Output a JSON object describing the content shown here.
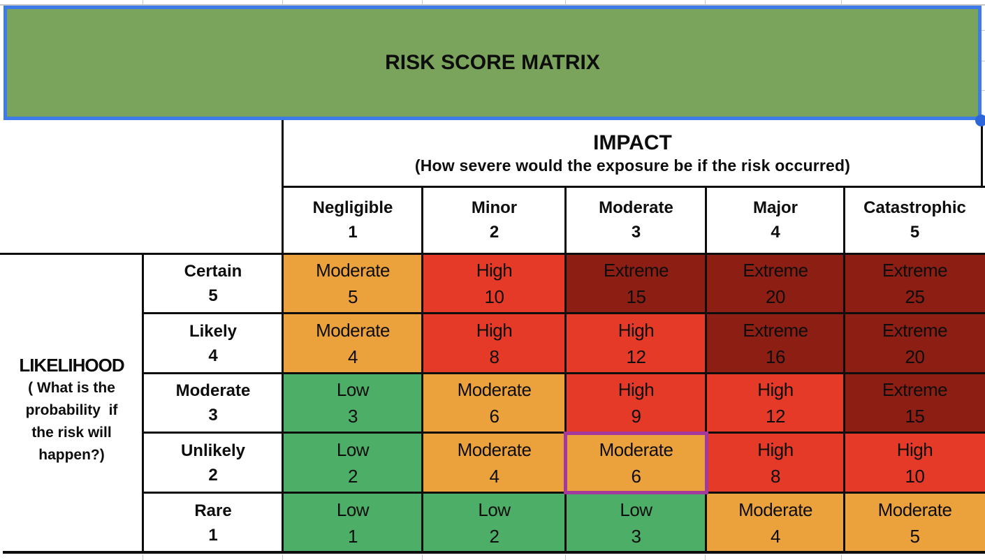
{
  "banner": {
    "title": "RISK SCORE MATRIX"
  },
  "impact_header": {
    "title": "IMPACT",
    "subtitle": "(How severe would the exposure be if the risk occurred)"
  },
  "likelihood_header": {
    "title": "LIKELIHOOD",
    "subtitle_lines": [
      "( What is the",
      "probability  if",
      "the risk will",
      "happen?)"
    ]
  },
  "impact_levels": [
    {
      "label": "Negligible",
      "value": "1"
    },
    {
      "label": "Minor",
      "value": "2"
    },
    {
      "label": "Moderate",
      "value": "3"
    },
    {
      "label": "Major",
      "value": "4"
    },
    {
      "label": "Catastrophic",
      "value": "5"
    }
  ],
  "likelihood_levels": [
    {
      "label": "Certain",
      "value": "5"
    },
    {
      "label": "Likely",
      "value": "4"
    },
    {
      "label": "Moderate",
      "value": "3"
    },
    {
      "label": "Unlikely",
      "value": "2"
    },
    {
      "label": "Rare",
      "value": "1"
    }
  ],
  "matrix": {
    "rows": [
      {
        "likelihood": "Certain",
        "cells": [
          {
            "rating": "Moderate",
            "score": "5",
            "level": "moderate"
          },
          {
            "rating": "High",
            "score": "10",
            "level": "high"
          },
          {
            "rating": "Extreme",
            "score": "15",
            "level": "extreme"
          },
          {
            "rating": "Extreme",
            "score": "20",
            "level": "extreme"
          },
          {
            "rating": "Extreme",
            "score": "25",
            "level": "extreme"
          }
        ]
      },
      {
        "likelihood": "Likely",
        "cells": [
          {
            "rating": "Moderate",
            "score": "4",
            "level": "moderate"
          },
          {
            "rating": "High",
            "score": "8",
            "level": "high"
          },
          {
            "rating": "High",
            "score": "12",
            "level": "high"
          },
          {
            "rating": "Extreme",
            "score": "16",
            "level": "extreme"
          },
          {
            "rating": "Extreme",
            "score": "20",
            "level": "extreme"
          }
        ]
      },
      {
        "likelihood": "Moderate",
        "cells": [
          {
            "rating": "Low",
            "score": "3",
            "level": "low"
          },
          {
            "rating": "Moderate",
            "score": "6",
            "level": "moderate"
          },
          {
            "rating": "High",
            "score": "9",
            "level": "high"
          },
          {
            "rating": "High",
            "score": "12",
            "level": "high"
          },
          {
            "rating": "Extreme",
            "score": "15",
            "level": "extreme"
          }
        ]
      },
      {
        "likelihood": "Unlikely",
        "cells": [
          {
            "rating": "Low",
            "score": "2",
            "level": "low"
          },
          {
            "rating": "Moderate",
            "score": "4",
            "level": "moderate"
          },
          {
            "rating": "Moderate",
            "score": "6",
            "level": "moderate"
          },
          {
            "rating": "High",
            "score": "8",
            "level": "high"
          },
          {
            "rating": "High",
            "score": "10",
            "level": "high"
          }
        ]
      },
      {
        "likelihood": "Rare",
        "cells": [
          {
            "rating": "Low",
            "score": "1",
            "level": "low"
          },
          {
            "rating": "Low",
            "score": "2",
            "level": "low"
          },
          {
            "rating": "Low",
            "score": "3",
            "level": "low"
          },
          {
            "rating": "Moderate",
            "score": "4",
            "level": "moderate"
          },
          {
            "rating": "Moderate",
            "score": "5",
            "level": "moderate"
          }
        ]
      }
    ]
  },
  "selected_cell": {
    "row": "Unlikely",
    "column": "Moderate",
    "rating": "Moderate",
    "score": "6"
  },
  "colors": {
    "low": "#4dae68",
    "moderate": "#eca23c",
    "high": "#e53a28",
    "extreme": "#8c1e13",
    "banner_green": "#7aa45c",
    "selection_blue": "#3e7be8",
    "selection_handle_blue": "#2d66d9",
    "selected_cell_purple": "#a3399c"
  }
}
